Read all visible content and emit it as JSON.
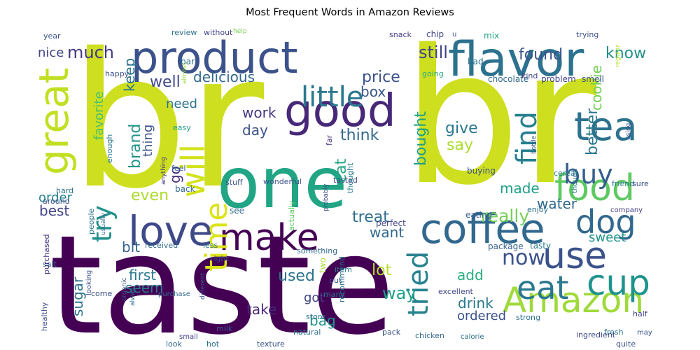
{
  "chart_data": {
    "type": "wordcloud",
    "title": "Most Frequent Words in Amazon Reviews",
    "colormap": "viridis",
    "background": "#ffffff",
    "words": [
      {
        "text": "br",
        "weight": 100,
        "color": "#cddf1e"
      },
      {
        "text": "br",
        "weight": 100,
        "color": "#cddf1e"
      },
      {
        "text": "taste",
        "weight": 72,
        "color": "#440154"
      },
      {
        "text": "one",
        "weight": 58,
        "color": "#21a585"
      },
      {
        "text": "product",
        "weight": 40,
        "color": "#3b528b"
      },
      {
        "text": "flavor",
        "weight": 40,
        "color": "#2c728e"
      },
      {
        "text": "good",
        "weight": 36,
        "color": "#482878"
      },
      {
        "text": "coffee",
        "weight": 34,
        "color": "#31688e"
      },
      {
        "text": "love",
        "weight": 32,
        "color": "#3e4989"
      },
      {
        "text": "make",
        "weight": 30,
        "color": "#440154"
      },
      {
        "text": "food",
        "weight": 30,
        "color": "#5ec962"
      },
      {
        "text": "great",
        "weight": 30,
        "color": "#c2df23"
      },
      {
        "text": "Amazon",
        "weight": 30,
        "color": "#9fda3a"
      },
      {
        "text": "tea",
        "weight": 30,
        "color": "#2c728e"
      },
      {
        "text": "will",
        "weight": 28,
        "color": "#d2e21b"
      },
      {
        "text": "use",
        "weight": 28,
        "color": "#3b528b"
      },
      {
        "text": "cup",
        "weight": 28,
        "color": "#1f948c"
      },
      {
        "text": "time",
        "weight": 26,
        "color": "#dde318"
      },
      {
        "text": "eat",
        "weight": 26,
        "color": "#2a788e"
      },
      {
        "text": "dog",
        "weight": 26,
        "color": "#31688e"
      },
      {
        "text": "little",
        "weight": 22,
        "color": "#2a788e"
      },
      {
        "text": "find",
        "weight": 22,
        "color": "#277f8e"
      },
      {
        "text": "try",
        "weight": 22,
        "color": "#21918c"
      },
      {
        "text": "tried",
        "weight": 22,
        "color": "#26828e"
      },
      {
        "text": "buy",
        "weight": 20,
        "color": "#355f8d"
      },
      {
        "text": "now",
        "weight": 20,
        "color": "#3b528b"
      },
      {
        "text": "really",
        "weight": 15,
        "color": "#73d056"
      },
      {
        "text": "much",
        "weight": 14,
        "color": "#443a83"
      },
      {
        "text": "still",
        "weight": 14,
        "color": "#414487"
      },
      {
        "text": "found",
        "weight": 13,
        "color": "#3b528b"
      },
      {
        "text": "know",
        "weight": 13,
        "color": "#21918c"
      },
      {
        "text": "price",
        "weight": 13,
        "color": "#3b528b"
      },
      {
        "text": "nice",
        "weight": 12,
        "color": "#414487"
      },
      {
        "text": "keep",
        "weight": 12,
        "color": "#2c728e"
      },
      {
        "text": "well",
        "weight": 13,
        "color": "#3e4989"
      },
      {
        "text": "delicious",
        "weight": 12,
        "color": "#31688e"
      },
      {
        "text": "box",
        "weight": 12,
        "color": "#39568c"
      },
      {
        "text": "better",
        "weight": 12,
        "color": "#2a788e"
      },
      {
        "text": "cookie",
        "weight": 11,
        "color": "#73d056"
      },
      {
        "text": "favorite",
        "weight": 11,
        "color": "#4ac16d"
      },
      {
        "text": "need",
        "weight": 11,
        "color": "#2c728e"
      },
      {
        "text": "brand",
        "weight": 14,
        "color": "#1f948c"
      },
      {
        "text": "thing",
        "weight": 11,
        "color": "#3b528b"
      },
      {
        "text": "work",
        "weight": 12,
        "color": "#443983"
      },
      {
        "text": "day",
        "weight": 12,
        "color": "#3b528b"
      },
      {
        "text": "think",
        "weight": 13,
        "color": "#31688e"
      },
      {
        "text": "bought",
        "weight": 13,
        "color": "#1fa088"
      },
      {
        "text": "give",
        "weight": 13,
        "color": "#2a788e"
      },
      {
        "text": "cat",
        "weight": 12,
        "color": "#22a785"
      },
      {
        "text": "say",
        "weight": 12,
        "color": "#addc30"
      },
      {
        "text": "made",
        "weight": 12,
        "color": "#1fa188"
      },
      {
        "text": "water",
        "weight": 12,
        "color": "#31688e"
      },
      {
        "text": "sweet",
        "weight": 11,
        "color": "#21918c"
      },
      {
        "text": "order",
        "weight": 12,
        "color": "#26828e"
      },
      {
        "text": "even",
        "weight": 12,
        "color": "#addc30"
      },
      {
        "text": "go",
        "weight": 12,
        "color": "#46307e"
      },
      {
        "text": "best",
        "weight": 13,
        "color": "#404588"
      },
      {
        "text": "treat",
        "weight": 13,
        "color": "#2e6d8e"
      },
      {
        "text": "want",
        "weight": 12,
        "color": "#31688e"
      },
      {
        "text": "bit",
        "weight": 12,
        "color": "#33638d"
      },
      {
        "text": "first",
        "weight": 13,
        "color": "#2a788e"
      },
      {
        "text": "seem",
        "weight": 12,
        "color": "#287c8e"
      },
      {
        "text": "used",
        "weight": 13,
        "color": "#2c728e"
      },
      {
        "text": "lot",
        "weight": 12,
        "color": "#b5de2b"
      },
      {
        "text": "add",
        "weight": 12,
        "color": "#29af7f"
      },
      {
        "text": "way",
        "weight": 13,
        "color": "#1fa188"
      },
      {
        "text": "drink",
        "weight": 12,
        "color": "#2a788e"
      },
      {
        "text": "take",
        "weight": 12,
        "color": "#482878"
      },
      {
        "text": "got",
        "weight": 11,
        "color": "#414487"
      },
      {
        "text": "bag",
        "weight": 12,
        "color": "#1f948c"
      },
      {
        "text": "ordered",
        "weight": 11,
        "color": "#3b528b"
      },
      {
        "text": "sugar",
        "weight": 11,
        "color": "#2c728e"
      },
      {
        "text": "tasty",
        "weight": 9,
        "color": "#2a788e"
      },
      {
        "text": "package",
        "weight": 9,
        "color": "#355f8d"
      },
      {
        "text": "chocolate",
        "weight": 9,
        "color": "#31688e"
      },
      {
        "text": "problem",
        "weight": 8,
        "color": "#404588"
      },
      {
        "text": "smell",
        "weight": 8,
        "color": "#3b528b"
      },
      {
        "text": "review",
        "weight": 7,
        "color": "#2c728e"
      },
      {
        "text": "without",
        "weight": 7,
        "color": "#404588"
      },
      {
        "text": "help",
        "weight": 6,
        "color": "#7ad151"
      },
      {
        "text": "snack",
        "weight": 7,
        "color": "#433e85"
      },
      {
        "text": "chip",
        "weight": 8,
        "color": "#414487"
      },
      {
        "text": "u",
        "weight": 7,
        "color": "#3b528b"
      },
      {
        "text": "mix",
        "weight": 8,
        "color": "#20a386"
      },
      {
        "text": "trying",
        "weight": 7,
        "color": "#3b528b"
      },
      {
        "text": "year",
        "weight": 7,
        "color": "#39568c"
      },
      {
        "text": "bar",
        "weight": 8,
        "color": "#2c728e"
      },
      {
        "text": "bad",
        "weight": 8,
        "color": "#2c728e"
      },
      {
        "text": "going",
        "weight": 7,
        "color": "#25ab82"
      },
      {
        "text": "happy",
        "weight": 7,
        "color": "#3b528b"
      },
      {
        "text": "kind",
        "weight": 7,
        "color": "#3e4a89"
      },
      {
        "text": "easy",
        "weight": 7,
        "color": "#1f9e89"
      },
      {
        "text": "almost",
        "weight": 6,
        "color": "#9bd93c"
      },
      {
        "text": "regular",
        "weight": 6,
        "color": "#b5de2b"
      },
      {
        "text": "feel",
        "weight": 7,
        "color": "#33638d"
      },
      {
        "text": "buying",
        "weight": 8,
        "color": "#3b528b"
      },
      {
        "text": "cereal",
        "weight": 7,
        "color": "#2a788e"
      },
      {
        "text": "enough",
        "weight": 7,
        "color": "#2a788e"
      },
      {
        "text": "anything",
        "weight": 6,
        "color": "#46337f"
      },
      {
        "text": "hard",
        "weight": 7,
        "color": "#2c728e"
      },
      {
        "text": "back",
        "weight": 8,
        "color": "#31688e"
      },
      {
        "text": "stuff",
        "weight": 7,
        "color": "#39568c"
      },
      {
        "text": "wonderful",
        "weight": 7,
        "color": "#3b528b"
      },
      {
        "text": "tasted",
        "weight": 7,
        "color": "#414487"
      },
      {
        "text": "friend",
        "weight": 7,
        "color": "#2a788e"
      },
      {
        "text": "sure",
        "weight": 7,
        "color": "#3b528b"
      },
      {
        "text": "company",
        "weight": 6,
        "color": "#433e85"
      },
      {
        "text": "enjoy",
        "weight": 7,
        "color": "#2c728e"
      },
      {
        "text": "eating",
        "weight": 8,
        "color": "#355f8d"
      },
      {
        "text": "see",
        "weight": 8,
        "color": "#31688e"
      },
      {
        "text": "around",
        "weight": 7,
        "color": "#3b528b"
      },
      {
        "text": "perfect",
        "weight": 8,
        "color": "#414487"
      },
      {
        "text": "thought",
        "weight": 7,
        "color": "#287c8e"
      },
      {
        "text": "probably",
        "weight": 6,
        "color": "#3e4a89"
      },
      {
        "text": "far",
        "weight": 7,
        "color": "#46307e"
      },
      {
        "text": "though",
        "weight": 7,
        "color": "#2a788e"
      },
      {
        "text": "using",
        "weight": 6,
        "color": "#3b528b"
      },
      {
        "text": "bottle",
        "weight": 6,
        "color": "#3b528b"
      },
      {
        "text": "received",
        "weight": 7,
        "color": "#31688e"
      },
      {
        "text": "less",
        "weight": 7,
        "color": "#2c728e"
      },
      {
        "text": "actually",
        "weight": 7,
        "color": "#5ec962"
      },
      {
        "text": "something",
        "weight": 7,
        "color": "#31688e"
      },
      {
        "text": "right",
        "weight": 7,
        "color": "#3b528b"
      },
      {
        "text": "people",
        "weight": 7,
        "color": "#2c728e"
      },
      {
        "text": "usually",
        "weight": 6,
        "color": "#31688e"
      },
      {
        "text": "salt",
        "weight": 7,
        "color": "#31688e"
      },
      {
        "text": "purchased",
        "weight": 7,
        "color": "#46307e"
      },
      {
        "text": "item",
        "weight": 7,
        "color": "#2a788e"
      },
      {
        "text": "put",
        "weight": 7,
        "color": "#3b528b"
      },
      {
        "text": "many",
        "weight": 7,
        "color": "#2c728e"
      },
      {
        "text": "two",
        "weight": 8,
        "color": "#addc30"
      },
      {
        "text": "excellent",
        "weight": 7,
        "color": "#404588"
      },
      {
        "text": "come",
        "weight": 7,
        "color": "#3b528b"
      },
      {
        "text": "purchase",
        "weight": 7,
        "color": "#31688e"
      },
      {
        "text": "different",
        "weight": 6,
        "color": "#3b528b"
      },
      {
        "text": "strong",
        "weight": 7,
        "color": "#2c728e"
      },
      {
        "text": "half",
        "weight": 7,
        "color": "#414487"
      },
      {
        "text": "looking",
        "weight": 7,
        "color": "#3b528b"
      },
      {
        "text": "store",
        "weight": 7,
        "color": "#2c728e"
      },
      {
        "text": "recommend",
        "weight": 7,
        "color": "#2c728e"
      },
      {
        "text": "milk",
        "weight": 7,
        "color": "#3b528b"
      },
      {
        "text": "organic",
        "weight": 6,
        "color": "#3b528b"
      },
      {
        "text": "healthy",
        "weight": 7,
        "color": "#3e4a89"
      },
      {
        "text": "alway",
        "weight": 6,
        "color": "#2c728e"
      },
      {
        "text": "fresh",
        "weight": 7,
        "color": "#2a788e"
      },
      {
        "text": "may",
        "weight": 6,
        "color": "#3b528b"
      },
      {
        "text": "natural",
        "weight": 7,
        "color": "#2c728e"
      },
      {
        "text": "pack",
        "weight": 7,
        "color": "#3b528b"
      },
      {
        "text": "small",
        "weight": 7,
        "color": "#414487"
      },
      {
        "text": "calorie",
        "weight": 6,
        "color": "#2c728e"
      },
      {
        "text": "look",
        "weight": 7,
        "color": "#31688e"
      },
      {
        "text": "hot",
        "weight": 7,
        "color": "#2c728e"
      },
      {
        "text": "texture",
        "weight": 7,
        "color": "#3b528b"
      },
      {
        "text": "chicken",
        "weight": 7,
        "color": "#31688e"
      },
      {
        "text": "ingredient",
        "weight": 7,
        "color": "#3e4a89"
      },
      {
        "text": "quite",
        "weight": 7,
        "color": "#3b528b"
      }
    ]
  }
}
